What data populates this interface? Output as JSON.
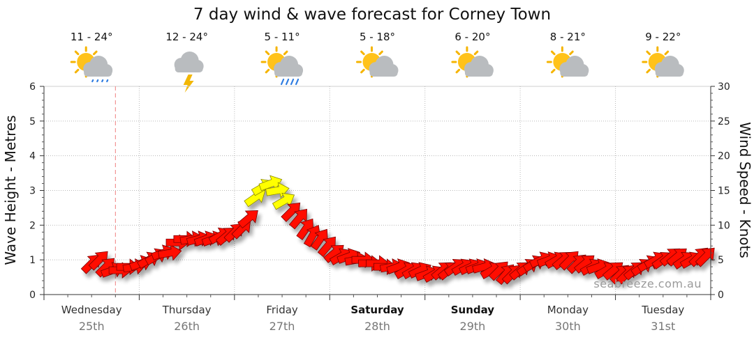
{
  "chart_data": {
    "type": "line",
    "title": "7 day wind & wave forecast for Corney Town",
    "ylabel_left": "Wave Height - Metres",
    "ylabel_right": "Wind Speed - Knots",
    "ylim_left": [
      0,
      6
    ],
    "ylim_right": [
      0,
      30
    ],
    "yticks_left": [
      "0",
      "1",
      "2",
      "3",
      "4",
      "5",
      "6"
    ],
    "yticks_right": [
      "0",
      "5",
      "10",
      "15",
      "20",
      "25",
      "30"
    ],
    "grid": true,
    "watermark": "seabreeze.com.au",
    "days": [
      {
        "name": "Wednesday",
        "date": "25th",
        "temp": "11 - 24°",
        "icon": "sun-cloud-showers-icon",
        "bold": false
      },
      {
        "name": "Thursday",
        "date": "26th",
        "temp": "12 - 24°",
        "icon": "cloud-lightning-icon",
        "bold": false
      },
      {
        "name": "Friday",
        "date": "27th",
        "temp": "5 - 11°",
        "icon": "sun-cloud-rain-icon",
        "bold": false
      },
      {
        "name": "Saturday",
        "date": "28th",
        "temp": "5 - 18°",
        "icon": "sun-cloud-icon",
        "bold": true
      },
      {
        "name": "Sunday",
        "date": "29th",
        "temp": "6 - 20°",
        "icon": "sun-cloud-icon",
        "bold": true
      },
      {
        "name": "Monday",
        "date": "30th",
        "temp": "8 - 21°",
        "icon": "sun-cloud-icon",
        "bold": false
      },
      {
        "name": "Tuesday",
        "date": "31st",
        "temp": "9 - 22°",
        "icon": "sun-cloud-icon",
        "bold": false
      }
    ],
    "now_marker_day": 0.75,
    "series": [
      {
        "name": "Wind arrows",
        "x_days": [
          0.5,
          0.58,
          0.65,
          0.72,
          0.8,
          0.88,
          0.95,
          1.02,
          1.1,
          1.18,
          1.25,
          1.32,
          1.4,
          1.48,
          1.55,
          1.62,
          1.7,
          1.78,
          1.85,
          1.92,
          2.0,
          2.08,
          2.15,
          2.22,
          2.3,
          2.38,
          2.45,
          2.52,
          2.6,
          2.68,
          2.75,
          2.82,
          2.9,
          2.98,
          3.05,
          3.12,
          3.2,
          3.28,
          3.35,
          3.42,
          3.5,
          3.58,
          3.65,
          3.72,
          3.8,
          3.88,
          3.95,
          4.02,
          4.1,
          4.18,
          4.25,
          4.32,
          4.4,
          4.48,
          4.55,
          4.62,
          4.7,
          4.78,
          4.85,
          4.92,
          5.0,
          5.08,
          5.15,
          5.22,
          5.3,
          5.38,
          5.45,
          5.52,
          5.6,
          5.68,
          5.75,
          5.82,
          5.9,
          5.98,
          6.05,
          6.12,
          6.2,
          6.28,
          6.35,
          6.42,
          6.5,
          6.58,
          6.65,
          6.72,
          6.8,
          6.88,
          6.95
        ],
        "wind_knots": [
          4.5,
          5,
          4,
          3.5,
          3.5,
          4,
          4,
          4.5,
          5,
          5.5,
          6,
          6,
          7.5,
          8,
          8,
          8,
          8,
          8,
          8.5,
          8.5,
          9,
          9.5,
          11,
          14,
          15.5,
          16,
          15,
          13.5,
          12,
          11,
          9.5,
          8.5,
          8,
          7,
          6,
          5.5,
          5.5,
          5,
          5,
          4.5,
          4.5,
          4,
          4,
          4,
          3.5,
          3.5,
          3.5,
          3,
          3,
          3.5,
          3.5,
          4,
          4,
          4,
          4,
          4,
          3.5,
          3.5,
          3,
          3,
          3.5,
          4,
          4.5,
          5,
          5,
          5,
          5,
          5,
          4.5,
          4.5,
          4,
          4,
          3.5,
          3.5,
          3,
          3,
          3.5,
          4,
          4.5,
          5,
          5,
          5.5,
          5.5,
          5,
          5,
          5.5,
          5.5
        ],
        "direction_deg": [
          225,
          225,
          225,
          250,
          270,
          270,
          260,
          250,
          240,
          240,
          250,
          260,
          270,
          270,
          260,
          255,
          250,
          250,
          240,
          230,
          225,
          225,
          230,
          235,
          240,
          250,
          260,
          240,
          225,
          220,
          215,
          210,
          215,
          220,
          230,
          240,
          250,
          260,
          270,
          270,
          270,
          270,
          260,
          250,
          240,
          240,
          245,
          250,
          240,
          230,
          230,
          235,
          240,
          245,
          250,
          255,
          240,
          225,
          220,
          225,
          230,
          235,
          240,
          245,
          250,
          240,
          230,
          225,
          225,
          230,
          240,
          250,
          240,
          230,
          225,
          225,
          230,
          235,
          240,
          240,
          235,
          230,
          230,
          235,
          240,
          225,
          225
        ]
      }
    ]
  }
}
